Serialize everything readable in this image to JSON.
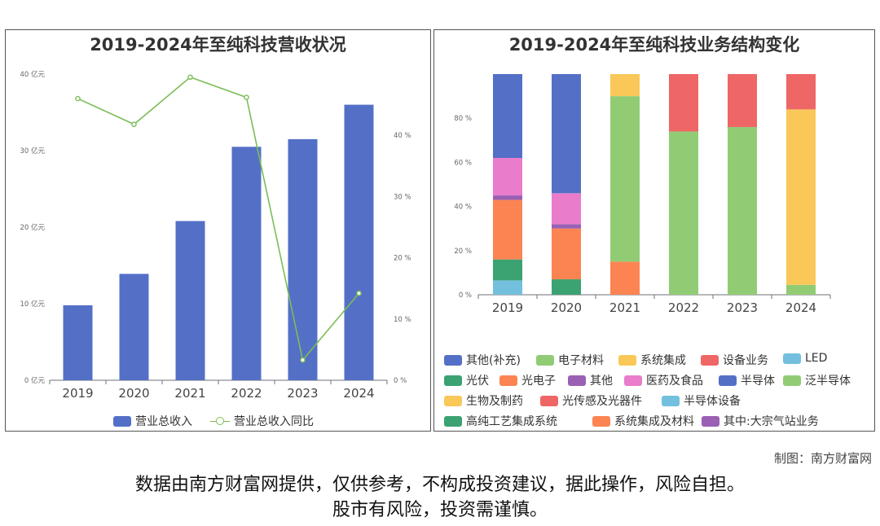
{
  "chart_data": [
    {
      "type": "bar",
      "title": "2019-2024年至纯科技营收状况",
      "categories": [
        "2019",
        "2020",
        "2021",
        "2022",
        "2023",
        "2024"
      ],
      "series": [
        {
          "name": "营业总收入",
          "type": "bar",
          "axis": "left",
          "color": "#5470c6",
          "values": [
            9.8,
            13.9,
            20.8,
            30.5,
            31.5,
            36.0
          ]
        },
        {
          "name": "营业总收入同比",
          "type": "line",
          "axis": "right",
          "color": "#7bbd57",
          "values": [
            46.0,
            41.8,
            49.5,
            46.2,
            3.3,
            14.2
          ]
        }
      ],
      "yleft": {
        "ylim": [
          0,
          40
        ],
        "ticks": [
          "0 亿元",
          "10 亿元",
          "20 亿元",
          "30 亿元",
          "40 亿元"
        ]
      },
      "yright": {
        "ylim": [
          0,
          50
        ],
        "ticks": [
          "0 %",
          "10 %",
          "20 %",
          "30 %",
          "40 %"
        ]
      },
      "legend": [
        "营业总收入",
        "营业总收入同比"
      ]
    },
    {
      "type": "stacked-bar",
      "title": "2019-2024年至纯科技业务结构变化",
      "categories": [
        "2019",
        "2020",
        "2021",
        "2022",
        "2023",
        "2024"
      ],
      "ylim": [
        0,
        100
      ],
      "yticks": [
        "0 %",
        "20 %",
        "40 %",
        "60 %",
        "80 %"
      ],
      "series": [
        {
          "name": "其他(补充)",
          "color": "#5470c6",
          "values": [
            0,
            0,
            0,
            0,
            0,
            0
          ]
        },
        {
          "name": "电子材料",
          "color": "#91cc75",
          "values": [
            0,
            0,
            0,
            0,
            0,
            0
          ]
        },
        {
          "name": "系统集成",
          "color": "#fac858",
          "values": [
            0,
            0,
            0,
            0,
            0,
            0
          ]
        },
        {
          "name": "设备业务",
          "color": "#ee6666",
          "values": [
            0,
            0,
            0,
            0,
            0,
            0
          ]
        },
        {
          "name": "LED",
          "color": "#73c0de",
          "values": [
            6.5,
            0,
            0,
            0,
            0,
            0
          ]
        },
        {
          "name": "光伏",
          "color": "#3ba272",
          "values": [
            9.5,
            7.0,
            0,
            0,
            0,
            0
          ]
        },
        {
          "name": "光电子",
          "color": "#fc8452",
          "values": [
            27.0,
            23.0,
            15.0,
            0,
            0,
            0
          ]
        },
        {
          "name": "其他",
          "color": "#9a60b4",
          "values": [
            2.0,
            2.0,
            0,
            0,
            0,
            0
          ]
        },
        {
          "name": "医药及食品",
          "color": "#ea7ccc",
          "values": [
            17.0,
            14.0,
            0,
            0,
            0,
            0
          ]
        },
        {
          "name": "半导体",
          "color": "#5470c6",
          "values": [
            38.0,
            54.0,
            0,
            0,
            0,
            0
          ]
        },
        {
          "name": "泛半导体",
          "color": "#91cc75",
          "values": [
            0,
            0,
            75.0,
            74.0,
            76.0,
            4.5
          ]
        },
        {
          "name": "生物及制药",
          "color": "#fac858",
          "values": [
            0,
            0,
            10.0,
            0,
            0,
            79.5
          ]
        },
        {
          "name": "光传感及光器件",
          "color": "#ee6666",
          "values": [
            0,
            0,
            0,
            26.0,
            24.0,
            16.0
          ]
        },
        {
          "name": "半导体设备",
          "color": "#73c0de",
          "values": [
            0,
            0,
            0,
            0,
            0,
            0
          ]
        },
        {
          "name": "高纯工艺集成系统",
          "color": "#3ba272",
          "values": [
            0,
            0,
            0,
            0,
            0,
            0
          ]
        },
        {
          "name": "系统集成及材料",
          "color": "#fc8452",
          "values": [
            0,
            0,
            0,
            0,
            0,
            0
          ]
        },
        {
          "name": "其中:大宗气站业务",
          "color": "#9a60b4",
          "values": [
            0,
            0,
            0,
            0,
            0,
            0
          ]
        }
      ]
    }
  ],
  "credit": "制图：南方财富网",
  "disclaimer_line1": "数据由南方财富网提供，仅供参考，不构成投资建议，据此操作，风险自担。",
  "disclaimer_line2": "股市有风险，投资需谨慎。"
}
